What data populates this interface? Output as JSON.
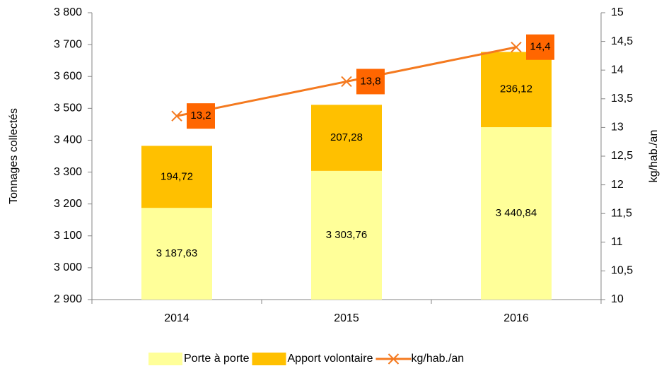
{
  "chart_data": {
    "type": "bar",
    "categories": [
      "2014",
      "2015",
      "2016"
    ],
    "series": [
      {
        "name": "Porte à porte",
        "color": "#ffff99",
        "values": [
          3187.63,
          3303.76,
          3440.84
        ],
        "value_labels": [
          "3 187,63",
          "3 303,76",
          "3 440,84"
        ]
      },
      {
        "name": "Apport volontaire",
        "color": "#ffc000",
        "values": [
          194.72,
          207.28,
          236.12
        ],
        "value_labels": [
          "194,72",
          "207,28",
          "236,12"
        ]
      },
      {
        "name": "kg/hab./an",
        "type": "line",
        "axis": "y2",
        "color": "#f47a20",
        "label_color": "#ff6600",
        "values": [
          13.2,
          13.8,
          14.4
        ],
        "value_labels": [
          "13,2",
          "13,8",
          "14,4"
        ]
      }
    ],
    "ylabel": "Tonnages collectés",
    "y2label": "kg/hab./an",
    "ylim": [
      2900,
      3800
    ],
    "yticks": [
      {
        "value": 2900,
        "label": "2 900"
      },
      {
        "value": 3000,
        "label": "3 000"
      },
      {
        "value": 3100,
        "label": "3 100"
      },
      {
        "value": 3200,
        "label": "3 200"
      },
      {
        "value": 3300,
        "label": "3 300"
      },
      {
        "value": 3400,
        "label": "3 400"
      },
      {
        "value": 3500,
        "label": "3 500"
      },
      {
        "value": 3600,
        "label": "3 600"
      },
      {
        "value": 3700,
        "label": "3 700"
      },
      {
        "value": 3800,
        "label": "3 800"
      }
    ],
    "y2lim": [
      10,
      15
    ],
    "y2ticks": [
      10,
      {
        "value": 10.5,
        "label": "10,5"
      },
      11,
      {
        "value": 11.5,
        "label": "11,5"
      },
      12,
      {
        "value": 12.5,
        "label": "12,5"
      },
      13,
      {
        "value": 13.5,
        "label": "13,5"
      },
      14,
      {
        "value": 14.5,
        "label": "14,5"
      },
      15
    ],
    "legend": "bottom",
    "grid": false
  }
}
